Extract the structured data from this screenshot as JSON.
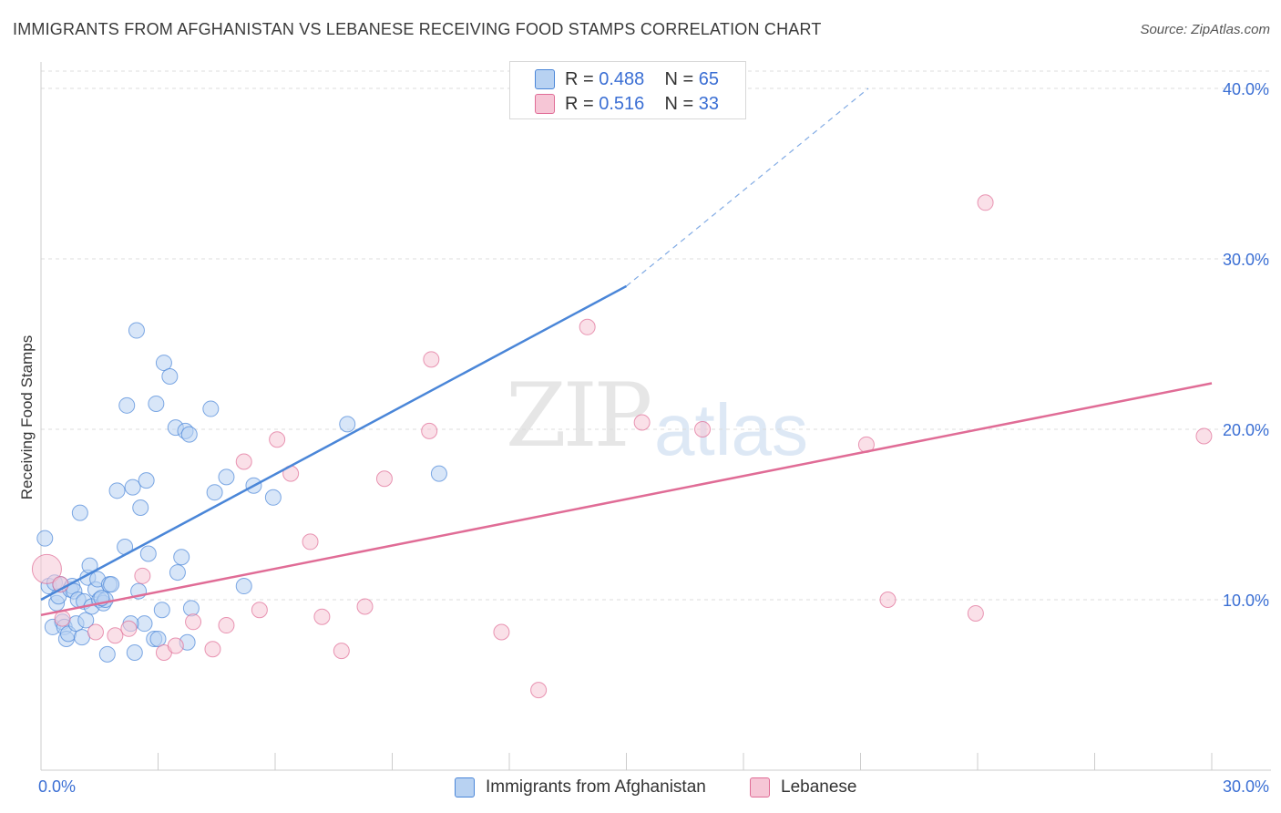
{
  "title": "IMMIGRANTS FROM AFGHANISTAN VS LEBANESE RECEIVING FOOD STAMPS CORRELATION CHART",
  "source": "Source: ZipAtlas.com",
  "watermark": {
    "zip": "ZIP",
    "atlas": "atlas"
  },
  "legend": {
    "rows": [
      {
        "r_label": "R =",
        "r_value": "0.488",
        "n_label": "N =",
        "n_value": "65"
      },
      {
        "r_label": "R =",
        "r_value": "0.516",
        "n_label": "N =",
        "n_value": "33"
      }
    ]
  },
  "bottom_legend": {
    "afghanistan": "Immigrants from Afghanistan",
    "lebanese": "Lebanese"
  },
  "colors": {
    "blue": "#4a86d8",
    "blue_fill": "#b8d2f2",
    "pink": "#e06c96",
    "pink_fill": "#f6c6d6",
    "axis_label": "#3b6fd4",
    "grid": "#dcdcdc"
  },
  "chart_data": {
    "type": "scatter",
    "title": "IMMIGRANTS FROM AFGHANISTAN VS LEBANESE RECEIVING FOOD STAMPS CORRELATION CHART",
    "xlabel": "",
    "ylabel": "Receiving Food Stamps",
    "xlim": [
      0,
      30
    ],
    "ylim": [
      0,
      40
    ],
    "x_tick_labels": [
      {
        "value": 0,
        "label": "0.0%"
      },
      {
        "value": 30,
        "label": "30.0%"
      }
    ],
    "y_tick_labels": [
      {
        "value": 10,
        "label": "10.0%"
      },
      {
        "value": 20,
        "label": "20.0%"
      },
      {
        "value": 30,
        "label": "30.0%"
      },
      {
        "value": 40,
        "label": "40.0%"
      }
    ],
    "series": [
      {
        "name": "Immigrants from Afghanistan",
        "color": "#4a86d8",
        "points": [
          [
            0.1,
            13.6
          ],
          [
            0.2,
            10.8
          ],
          [
            0.3,
            8.4
          ],
          [
            0.35,
            11.0
          ],
          [
            0.4,
            9.8
          ],
          [
            0.45,
            10.2
          ],
          [
            0.5,
            10.9
          ],
          [
            0.55,
            8.7
          ],
          [
            0.6,
            8.4
          ],
          [
            0.65,
            7.7
          ],
          [
            0.7,
            8.0
          ],
          [
            0.75,
            10.6
          ],
          [
            0.8,
            10.8
          ],
          [
            0.85,
            10.5
          ],
          [
            0.9,
            8.6
          ],
          [
            0.95,
            10.0
          ],
          [
            1.0,
            15.1
          ],
          [
            1.05,
            7.8
          ],
          [
            1.1,
            9.9
          ],
          [
            1.15,
            8.8
          ],
          [
            1.2,
            11.3
          ],
          [
            1.25,
            12.0
          ],
          [
            1.3,
            9.6
          ],
          [
            1.4,
            10.6
          ],
          [
            1.45,
            11.2
          ],
          [
            1.5,
            10.0
          ],
          [
            1.6,
            9.8
          ],
          [
            1.65,
            10.0
          ],
          [
            1.7,
            6.8
          ],
          [
            1.75,
            10.9
          ],
          [
            1.8,
            10.9
          ],
          [
            1.95,
            16.4
          ],
          [
            2.15,
            13.1
          ],
          [
            2.2,
            21.4
          ],
          [
            2.35,
            16.6
          ],
          [
            2.4,
            6.9
          ],
          [
            2.45,
            25.8
          ],
          [
            2.5,
            10.5
          ],
          [
            2.55,
            15.4
          ],
          [
            2.65,
            8.6
          ],
          [
            2.7,
            17.0
          ],
          [
            2.75,
            12.7
          ],
          [
            2.9,
            7.7
          ],
          [
            2.95,
            21.5
          ],
          [
            3.0,
            7.7
          ],
          [
            3.1,
            9.4
          ],
          [
            3.15,
            23.9
          ],
          [
            3.3,
            23.1
          ],
          [
            3.45,
            20.1
          ],
          [
            3.5,
            11.6
          ],
          [
            3.6,
            12.5
          ],
          [
            3.7,
            19.9
          ],
          [
            3.75,
            7.5
          ],
          [
            3.8,
            19.7
          ],
          [
            3.85,
            9.5
          ],
          [
            4.35,
            21.2
          ],
          [
            4.45,
            16.3
          ],
          [
            4.75,
            17.2
          ],
          [
            5.2,
            10.8
          ],
          [
            5.45,
            16.7
          ],
          [
            5.95,
            16.0
          ],
          [
            7.85,
            20.3
          ],
          [
            10.2,
            17.4
          ],
          [
            2.3,
            8.6
          ],
          [
            1.55,
            10.1
          ]
        ],
        "trend": {
          "x1": 0,
          "y1": 10.0,
          "x2": 15,
          "y2": 28.4,
          "dashed_to_x": 21.2,
          "dashed_to_y": 40.0
        }
      },
      {
        "name": "Lebanese",
        "color": "#e06c96",
        "points": [
          [
            0.15,
            11.8
          ],
          [
            0.5,
            10.9
          ],
          [
            0.55,
            8.9
          ],
          [
            1.4,
            8.1
          ],
          [
            1.9,
            7.9
          ],
          [
            2.25,
            8.3
          ],
          [
            2.6,
            11.4
          ],
          [
            3.15,
            6.9
          ],
          [
            3.45,
            7.3
          ],
          [
            3.9,
            8.7
          ],
          [
            4.4,
            7.1
          ],
          [
            4.75,
            8.5
          ],
          [
            5.2,
            18.1
          ],
          [
            5.6,
            9.4
          ],
          [
            6.05,
            19.4
          ],
          [
            6.4,
            17.4
          ],
          [
            6.9,
            13.4
          ],
          [
            7.2,
            9.0
          ],
          [
            7.7,
            7.0
          ],
          [
            8.3,
            9.6
          ],
          [
            8.8,
            17.1
          ],
          [
            9.95,
            19.9
          ],
          [
            10.0,
            24.1
          ],
          [
            11.8,
            8.1
          ],
          [
            12.75,
            4.7
          ],
          [
            14.0,
            26.0
          ],
          [
            15.4,
            20.4
          ],
          [
            16.95,
            20.0
          ],
          [
            21.15,
            19.1
          ],
          [
            21.7,
            10.0
          ],
          [
            23.95,
            9.2
          ],
          [
            24.2,
            33.3
          ],
          [
            29.8,
            19.6
          ]
        ],
        "trend": {
          "x1": 0,
          "y1": 9.1,
          "x2": 30,
          "y2": 22.7
        }
      }
    ]
  }
}
